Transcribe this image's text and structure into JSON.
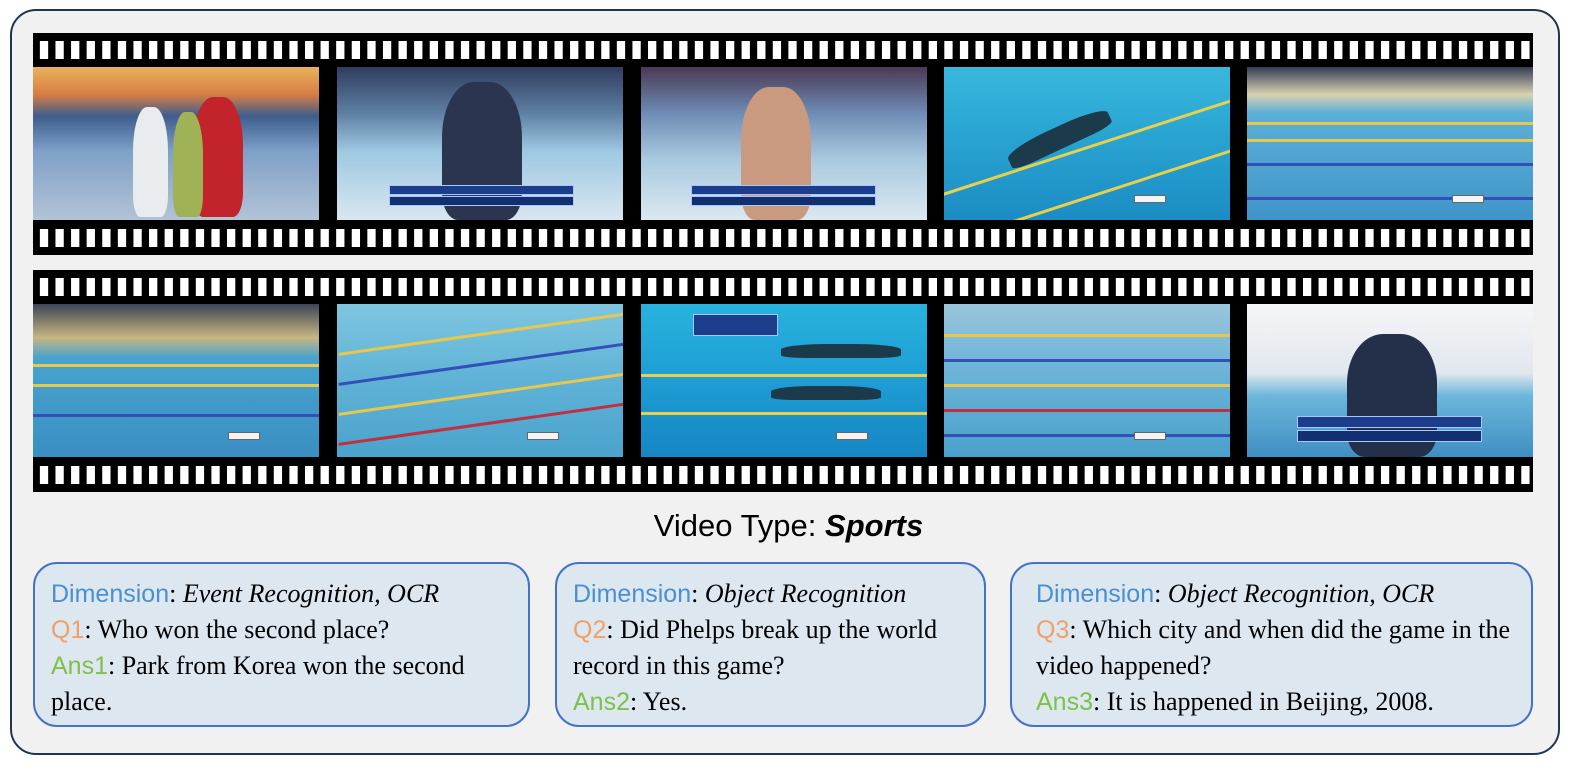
{
  "title": {
    "prefix": "Video Type: ",
    "value": "Sports"
  },
  "cards": [
    {
      "dimension_key": "Dimension",
      "dimension_value": "Event Recognition, OCR",
      "q_key": "Q1",
      "question": "Who won the second place?",
      "a_key": "Ans1",
      "answer": "Park from Korea won the second place."
    },
    {
      "dimension_key": "Dimension",
      "dimension_value": "Object Recognition",
      "q_key": "Q2",
      "question": "Did Phelps break up the world record in this game?",
      "a_key": "Ans2",
      "answer": "Yes."
    },
    {
      "dimension_key": "Dimension",
      "dimension_value": "Object Recognition, OCR",
      "q_key": "Q3",
      "question": "Which city and when did the game in the video happened?",
      "a_key": "Ans3",
      "answer": "It is happened in Beijing, 2008."
    }
  ],
  "colors": {
    "dimension": "#4a90d0",
    "question": "#f0a066",
    "answer": "#7dc04a",
    "card_border": "#4472c4",
    "card_fill": "#dde7f0",
    "frame_border": "#1f3653"
  }
}
